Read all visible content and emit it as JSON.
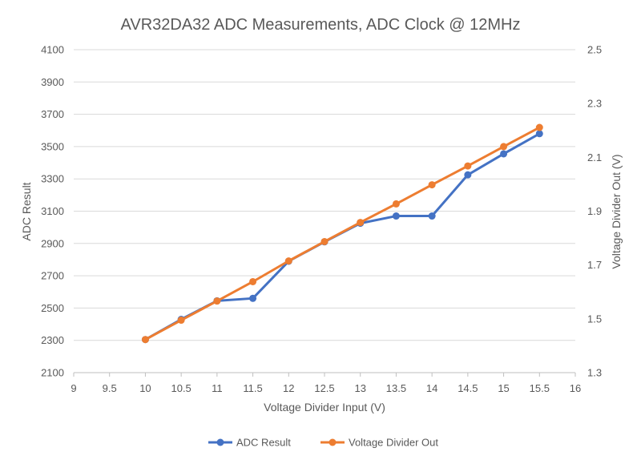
{
  "chart_data": {
    "type": "line",
    "title": "AVR32DA32 ADC Measurements, ADC Clock @ 12MHz",
    "xlabel": "Voltage Divider Input (V)",
    "ylabel": "ADC Result",
    "y2label": "Voltage Divider Out (V)",
    "xlim": [
      9,
      16
    ],
    "ylim": [
      2100,
      4100
    ],
    "y2lim": [
      1.3,
      2.5
    ],
    "x_ticks": [
      "9",
      "9.5",
      "10",
      "10.5",
      "11",
      "11.5",
      "12",
      "12.5",
      "13",
      "13.5",
      "14",
      "14.5",
      "15",
      "15.5",
      "16"
    ],
    "y_ticks": [
      "2100",
      "2300",
      "2500",
      "2700",
      "2900",
      "3100",
      "3300",
      "3500",
      "3700",
      "3900",
      "4100"
    ],
    "y2_ticks": [
      "1.3",
      "1.5",
      "1.7",
      "1.9",
      "2.1",
      "2.3",
      "2.5"
    ],
    "grid": true,
    "legend_position": "bottom",
    "series": [
      {
        "name": "ADC Result",
        "axis": "left",
        "color": "#4472c4",
        "x": [
          10,
          10.5,
          11,
          11.5,
          12,
          12.5,
          13,
          13.5,
          14,
          14.5,
          15,
          15.5
        ],
        "values": [
          2305,
          2430,
          2545,
          2560,
          2790,
          2910,
          3025,
          3070,
          3070,
          3325,
          3455,
          3580
        ]
      },
      {
        "name": "Voltage Divider Out",
        "axis": "right",
        "color": "#ed7d31",
        "x": [
          10,
          10.5,
          11,
          11.5,
          12,
          12.5,
          13,
          13.5,
          14,
          14.5,
          15,
          15.5
        ],
        "values": [
          1.423,
          1.495,
          1.566,
          1.638,
          1.715,
          1.787,
          1.858,
          1.927,
          1.998,
          2.068,
          2.14,
          2.211
        ]
      }
    ]
  }
}
